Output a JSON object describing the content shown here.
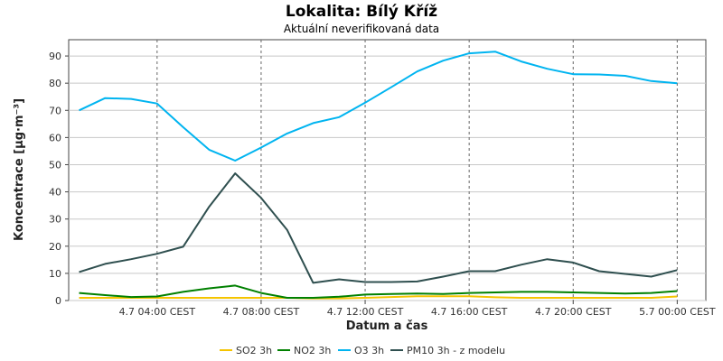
{
  "chart_data": {
    "type": "line",
    "title": "Lokalita: Bílý Kříž",
    "subtitle": "Aktuální neverifikovaná data",
    "xlabel": "Datum a čas",
    "ylabel": "Koncentrace [µg·m⁻³]",
    "ylim": [
      0,
      96
    ],
    "yticks": [
      0,
      10,
      20,
      30,
      40,
      50,
      60,
      70,
      80,
      90
    ],
    "x_tick_labels": [
      "4.7 04:00 CEST",
      "4.7 08:00 CEST",
      "4.7 12:00 CEST",
      "4.7 16:00 CEST",
      "4.7 20:00 CEST",
      "5.7 00:00 CEST"
    ],
    "x_tick_hours": [
      4,
      8,
      12,
      16,
      20,
      24
    ],
    "xlim_hours": [
      0.6,
      25.1
    ],
    "x_hours": [
      1,
      2,
      3,
      4,
      5,
      6,
      7,
      8,
      9,
      10,
      11,
      12,
      13,
      14,
      15,
      16,
      17,
      18,
      19,
      20,
      21,
      22,
      23,
      24
    ],
    "grid": true,
    "legend_position": "bottom",
    "series": [
      {
        "name": "SO2 3h",
        "color": "#f5c400",
        "values": [
          1.0,
          1.0,
          1.0,
          1.0,
          1.0,
          1.0,
          1.0,
          1.0,
          1.0,
          0.8,
          0.8,
          1.0,
          1.3,
          1.6,
          1.6,
          1.6,
          1.2,
          1.0,
          1.0,
          1.0,
          1.0,
          1.0,
          1.0,
          1.5
        ]
      },
      {
        "name": "NO2 3h",
        "color": "#008000",
        "values": [
          2.8,
          2.0,
          1.3,
          1.5,
          3.2,
          4.5,
          5.5,
          2.8,
          1.0,
          1.0,
          1.4,
          2.2,
          2.4,
          2.6,
          2.4,
          2.8,
          3.0,
          3.2,
          3.2,
          3.0,
          2.8,
          2.6,
          2.8,
          3.5
        ]
      },
      {
        "name": "O3 3h",
        "color": "#00b4f0",
        "values": [
          70.0,
          74.5,
          74.2,
          72.5,
          63.8,
          55.5,
          51.5,
          56.3,
          61.5,
          65.3,
          67.5,
          72.8,
          78.5,
          84.3,
          88.3,
          91.0,
          91.6,
          88.0,
          85.3,
          83.3,
          83.2,
          82.7,
          80.8,
          80.0
        ]
      },
      {
        "name": "PM10 3h - z modelu",
        "color": "#2f4f4f",
        "values": [
          10.5,
          13.5,
          15.2,
          17.2,
          19.8,
          34.5,
          46.8,
          37.8,
          26.0,
          6.5,
          7.8,
          6.8,
          6.8,
          7.0,
          8.8,
          10.8,
          10.8,
          13.2,
          15.2,
          14.0,
          10.8,
          9.8,
          8.8,
          11.2
        ]
      }
    ]
  }
}
